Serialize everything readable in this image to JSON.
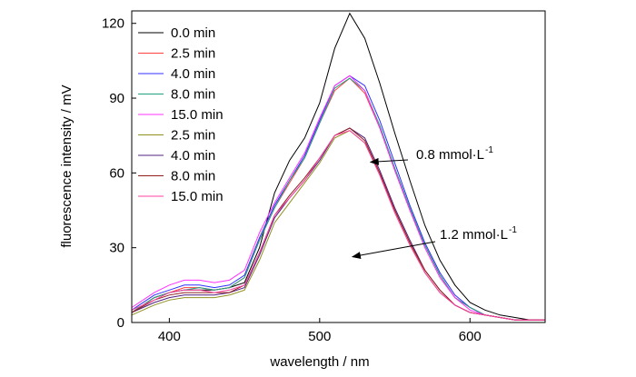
{
  "chart_data": {
    "type": "line",
    "xlabel": "wavelength / nm",
    "ylabel": "fluorescence intensity / mV",
    "xlim": [
      375,
      650
    ],
    "ylim": [
      0,
      125
    ],
    "xticks": [
      400,
      500,
      600
    ],
    "yticks": [
      0,
      30,
      60,
      90,
      120
    ],
    "grid": false,
    "legend_position": "top-left",
    "series": [
      {
        "name": "0.0 min",
        "color": "#000000",
        "x": [
          375,
          390,
          400,
          410,
          420,
          430,
          440,
          450,
          460,
          470,
          480,
          490,
          500,
          510,
          520,
          530,
          540,
          550,
          560,
          570,
          580,
          590,
          600,
          610,
          620,
          630,
          640,
          650
        ],
        "y": [
          4,
          10,
          12,
          13,
          13,
          13,
          14,
          16,
          30,
          52,
          65,
          74,
          88,
          110,
          124,
          114,
          96,
          76,
          57,
          39,
          25,
          15,
          8,
          5,
          3,
          2,
          1,
          1
        ]
      },
      {
        "name": "2.5 min",
        "color": "#ff4040",
        "x": [
          375,
          390,
          400,
          410,
          420,
          430,
          440,
          450,
          460,
          470,
          480,
          490,
          500,
          510,
          520,
          530,
          540,
          550,
          560,
          570,
          580,
          590,
          600,
          610,
          620,
          630,
          640,
          650
        ],
        "y": [
          4,
          10,
          12,
          14,
          14,
          13,
          14,
          18,
          33,
          46,
          56,
          66,
          80,
          93,
          98,
          92,
          78,
          61,
          45,
          31,
          19,
          10,
          6,
          3,
          2,
          1,
          1,
          1
        ]
      },
      {
        "name": "4.0 min",
        "color": "#3030ff",
        "x": [
          375,
          390,
          400,
          410,
          420,
          430,
          440,
          450,
          460,
          470,
          480,
          490,
          500,
          510,
          520,
          530,
          540,
          550,
          560,
          570,
          580,
          590,
          600,
          610,
          620,
          630,
          640,
          650
        ],
        "y": [
          5,
          11,
          13,
          15,
          15,
          14,
          15,
          19,
          34,
          47,
          57,
          67,
          81,
          95,
          99,
          95,
          81,
          64,
          47,
          32,
          20,
          11,
          6,
          3,
          2,
          1,
          1,
          1
        ]
      },
      {
        "name": "8.0 min",
        "color": "#20a080",
        "x": [
          375,
          390,
          400,
          410,
          420,
          430,
          440,
          450,
          460,
          470,
          480,
          490,
          500,
          510,
          520,
          530,
          540,
          550,
          560,
          570,
          580,
          590,
          600,
          610,
          620,
          630,
          640,
          650
        ],
        "y": [
          4,
          10,
          12,
          13,
          14,
          13,
          14,
          18,
          33,
          46,
          57,
          66,
          80,
          94,
          98,
          93,
          79,
          62,
          46,
          31,
          19,
          10,
          6,
          3,
          2,
          1,
          1,
          1
        ]
      },
      {
        "name": "15.0 min",
        "color": "#ff30ff",
        "x": [
          375,
          390,
          400,
          410,
          420,
          430,
          440,
          450,
          460,
          470,
          480,
          490,
          500,
          510,
          520,
          530,
          540,
          550,
          560,
          570,
          580,
          590,
          600,
          610,
          620,
          630,
          640,
          650
        ],
        "y": [
          6,
          12,
          15,
          17,
          17,
          16,
          17,
          21,
          36,
          48,
          58,
          68,
          82,
          95,
          99,
          93,
          78,
          61,
          45,
          30,
          18,
          10,
          5,
          3,
          2,
          1,
          1,
          1
        ]
      },
      {
        "name": "2.5 min",
        "color": "#909020",
        "x": [
          375,
          390,
          400,
          410,
          420,
          430,
          440,
          450,
          460,
          470,
          480,
          490,
          500,
          510,
          520,
          530,
          540,
          550,
          560,
          570,
          580,
          590,
          600,
          610,
          620,
          630,
          640,
          650
        ],
        "y": [
          3,
          7,
          9,
          10,
          10,
          10,
          11,
          13,
          25,
          40,
          48,
          56,
          64,
          74,
          77,
          72,
          60,
          45,
          32,
          20,
          12,
          7,
          4,
          3,
          2,
          1,
          1,
          1
        ]
      },
      {
        "name": "4.0 min",
        "color": "#502080",
        "x": [
          375,
          390,
          400,
          410,
          420,
          430,
          440,
          450,
          460,
          470,
          480,
          490,
          500,
          510,
          520,
          530,
          540,
          550,
          560,
          570,
          580,
          590,
          600,
          610,
          620,
          630,
          640,
          650
        ],
        "y": [
          4,
          8,
          10,
          11,
          11,
          11,
          12,
          14,
          27,
          42,
          50,
          57,
          65,
          75,
          78,
          74,
          61,
          46,
          33,
          21,
          13,
          7,
          4,
          3,
          2,
          1,
          1,
          1
        ]
      },
      {
        "name": "8.0 min",
        "color": "#902020",
        "x": [
          375,
          390,
          400,
          410,
          420,
          430,
          440,
          450,
          460,
          470,
          480,
          490,
          500,
          510,
          520,
          530,
          540,
          550,
          560,
          570,
          580,
          590,
          600,
          610,
          620,
          630,
          640,
          650
        ],
        "y": [
          4,
          9,
          11,
          12,
          12,
          12,
          12,
          15,
          28,
          43,
          51,
          58,
          66,
          75,
          78,
          73,
          60,
          45,
          32,
          21,
          13,
          7,
          4,
          3,
          2,
          1,
          1,
          1
        ]
      },
      {
        "name": "15.0 min",
        "color": "#ff40a0",
        "x": [
          375,
          390,
          400,
          410,
          420,
          430,
          440,
          450,
          460,
          470,
          480,
          490,
          500,
          510,
          520,
          530,
          540,
          550,
          560,
          570,
          580,
          590,
          600,
          610,
          620,
          630,
          640,
          650
        ],
        "y": [
          5,
          9,
          12,
          13,
          13,
          12,
          13,
          15,
          28,
          43,
          50,
          57,
          66,
          75,
          77,
          72,
          59,
          44,
          31,
          20,
          12,
          7,
          4,
          3,
          2,
          1,
          1,
          1
        ]
      }
    ],
    "annotations": [
      {
        "label": "0.8  mmol·L",
        "sup": "-1",
        "point": [
          532,
          64
        ]
      },
      {
        "label": "1.2  mmol·L",
        "sup": "-1",
        "point": [
          520,
          26
        ]
      }
    ]
  }
}
